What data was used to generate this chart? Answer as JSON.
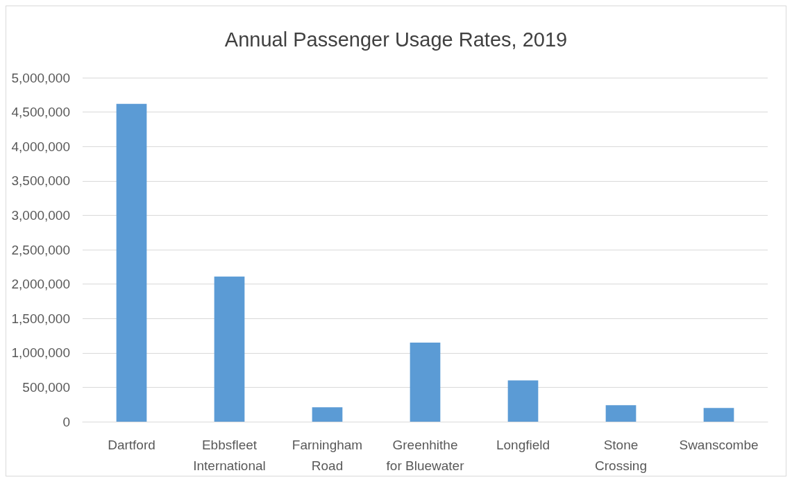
{
  "chart_data": {
    "type": "bar",
    "title": "Annual Passenger Usage Rates, 2019",
    "categories": [
      "Dartford",
      "Ebbsfleet International",
      "Farningham Road",
      "Greenhithe for Bluewater",
      "Longfield",
      "Stone Crossing",
      "Swanscombe"
    ],
    "values": [
      4620000,
      2110000,
      210000,
      1150000,
      600000,
      240000,
      200000
    ],
    "color": "#5b9bd5",
    "ylim": [
      0,
      5000000
    ],
    "yticks": [
      0,
      {
        "value": 500000,
        "label": "500,000"
      },
      {
        "value": 1000000,
        "label": "1,000,000"
      },
      {
        "value": 1500000,
        "label": "1,500,000"
      },
      {
        "value": 2000000,
        "label": "2,000,000"
      },
      {
        "value": 2500000,
        "label": "2,500,000"
      },
      {
        "value": 3000000,
        "label": "3,000,000"
      },
      {
        "value": 3500000,
        "label": "3,500,000"
      },
      {
        "value": 4000000,
        "label": "4,000,000"
      },
      {
        "value": 4500000,
        "label": "4,500,000"
      },
      {
        "value": 5000000,
        "label": "5,000,000"
      }
    ],
    "grid": "y"
  }
}
